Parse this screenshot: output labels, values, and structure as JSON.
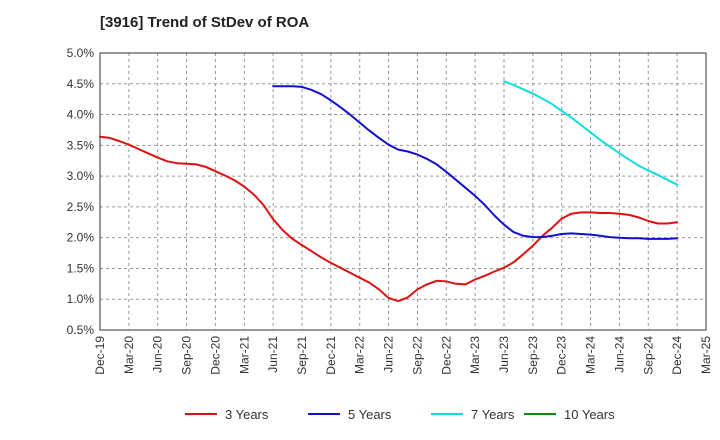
{
  "chart_data": {
    "type": "line",
    "title": "[3916]  Trend of StDev of ROA",
    "xlabel": "",
    "ylabel": "",
    "ylim": [
      0.5,
      5.0
    ],
    "y_ticks": [
      "0.5%",
      "1.0%",
      "1.5%",
      "2.0%",
      "2.5%",
      "3.0%",
      "3.5%",
      "4.0%",
      "4.5%",
      "5.0%"
    ],
    "x_ticks": [
      "Dec-19",
      "Mar-20",
      "Jun-20",
      "Sep-20",
      "Dec-20",
      "Mar-21",
      "Jun-21",
      "Sep-21",
      "Dec-21",
      "Mar-22",
      "Jun-22",
      "Sep-22",
      "Dec-22",
      "Mar-23",
      "Jun-23",
      "Sep-23",
      "Dec-23",
      "Mar-24",
      "Jun-24",
      "Sep-24",
      "Dec-24",
      "Mar-25"
    ],
    "grid": "dashed",
    "legend_position": "bottom",
    "series": [
      {
        "name": "3 Years",
        "color": "#dd1111",
        "x": [
          "Dec-19",
          "Jan-20",
          "Feb-20",
          "Mar-20",
          "Apr-20",
          "May-20",
          "Jun-20",
          "Jul-20",
          "Aug-20",
          "Sep-20",
          "Oct-20",
          "Nov-20",
          "Dec-20",
          "Jan-21",
          "Feb-21",
          "Mar-21",
          "Apr-21",
          "May-21",
          "Jun-21",
          "Jul-21",
          "Aug-21",
          "Sep-21",
          "Oct-21",
          "Nov-21",
          "Dec-21",
          "Jan-22",
          "Feb-22",
          "Mar-22",
          "Apr-22",
          "May-22",
          "Jun-22",
          "Jul-22",
          "Aug-22",
          "Sep-22",
          "Oct-22",
          "Nov-22",
          "Dec-22",
          "Jan-23",
          "Feb-23",
          "Mar-23",
          "Apr-23",
          "May-23",
          "Jun-23",
          "Jul-23",
          "Aug-23",
          "Sep-23",
          "Oct-23",
          "Nov-23",
          "Dec-23",
          "Jan-24",
          "Feb-24",
          "Mar-24",
          "Apr-24",
          "May-24",
          "Jun-24",
          "Jul-24",
          "Aug-24",
          "Sep-24",
          "Oct-24",
          "Nov-24",
          "Dec-24"
        ],
        "values": [
          3.64,
          3.62,
          3.57,
          3.51,
          3.44,
          3.37,
          3.3,
          3.24,
          3.21,
          3.2,
          3.19,
          3.15,
          3.08,
          3.01,
          2.93,
          2.83,
          2.7,
          2.53,
          2.3,
          2.12,
          1.98,
          1.88,
          1.78,
          1.68,
          1.59,
          1.51,
          1.43,
          1.35,
          1.27,
          1.16,
          1.02,
          0.97,
          1.03,
          1.16,
          1.24,
          1.3,
          1.29,
          1.25,
          1.24,
          1.32,
          1.38,
          1.45,
          1.51,
          1.6,
          1.73,
          1.87,
          2.03,
          2.16,
          2.31,
          2.39,
          2.41,
          2.41,
          2.4,
          2.4,
          2.39,
          2.37,
          2.33,
          2.27,
          2.23,
          2.23,
          2.25
        ]
      },
      {
        "name": "5 Years",
        "color": "#1111cc",
        "x": [
          "Jun-21",
          "Jul-21",
          "Aug-21",
          "Sep-21",
          "Oct-21",
          "Nov-21",
          "Dec-21",
          "Jan-22",
          "Feb-22",
          "Mar-22",
          "Apr-22",
          "May-22",
          "Jun-22",
          "Jul-22",
          "Aug-22",
          "Sep-22",
          "Oct-22",
          "Nov-22",
          "Dec-22",
          "Jan-23",
          "Feb-23",
          "Mar-23",
          "Apr-23",
          "May-23",
          "Jun-23",
          "Jul-23",
          "Aug-23",
          "Sep-23",
          "Oct-23",
          "Nov-23",
          "Dec-23",
          "Jan-24",
          "Feb-24",
          "Mar-24",
          "Apr-24",
          "May-24",
          "Jun-24",
          "Jul-24",
          "Aug-24",
          "Sep-24",
          "Oct-24",
          "Nov-24",
          "Dec-24"
        ],
        "values": [
          4.46,
          4.46,
          4.46,
          4.45,
          4.4,
          4.33,
          4.23,
          4.12,
          4.0,
          3.87,
          3.74,
          3.62,
          3.51,
          3.43,
          3.4,
          3.35,
          3.28,
          3.19,
          3.07,
          2.94,
          2.81,
          2.68,
          2.53,
          2.36,
          2.21,
          2.09,
          2.03,
          2.01,
          2.01,
          2.03,
          2.06,
          2.07,
          2.06,
          2.05,
          2.03,
          2.01,
          2.0,
          1.99,
          1.99,
          1.98,
          1.98,
          1.98,
          1.99
        ]
      },
      {
        "name": "7 Years",
        "color": "#11dddd",
        "x": [
          "Jun-23",
          "Jul-23",
          "Aug-23",
          "Sep-23",
          "Oct-23",
          "Nov-23",
          "Dec-23",
          "Jan-24",
          "Feb-24",
          "Mar-24",
          "Apr-24",
          "May-24",
          "Jun-24",
          "Jul-24",
          "Aug-24",
          "Sep-24",
          "Oct-24",
          "Nov-24",
          "Dec-24"
        ],
        "values": [
          4.54,
          4.48,
          4.41,
          4.34,
          4.26,
          4.17,
          4.06,
          3.95,
          3.83,
          3.71,
          3.59,
          3.48,
          3.37,
          3.27,
          3.17,
          3.09,
          3.02,
          2.94,
          2.86
        ]
      },
      {
        "name": "10 Years",
        "color": "#118811",
        "x": [],
        "values": []
      }
    ]
  }
}
